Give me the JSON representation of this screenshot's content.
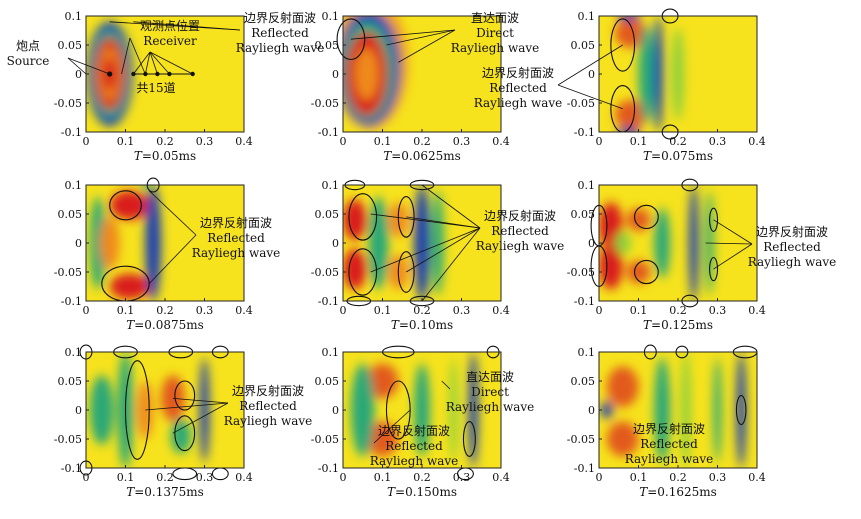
{
  "figure": {
    "x_ticks": [
      "0",
      "0.1",
      "0.2",
      "0.3",
      "0.4"
    ],
    "y_ticks": [
      "0.1",
      "0.05",
      "0",
      "-0.05",
      "-0.1"
    ],
    "time_var": "T",
    "panels": [
      {
        "time": "=0.05ms",
        "labels": [
          {
            "lines": [
              "观测点位置",
              "Receiver"
            ]
          },
          {
            "lines": [
              "炮点",
              "Source"
            ]
          },
          {
            "lines": [
              "共15道"
            ]
          },
          {
            "lines": [
              "边界反射面波",
              "Reflected",
              "Rayliegh wave"
            ]
          }
        ]
      },
      {
        "time": "=0.0625ms",
        "labels": [
          {
            "lines": [
              "直达面波",
              "Direct",
              "Rayliegh wave"
            ]
          }
        ]
      },
      {
        "time": "=0.075ms",
        "labels": [
          {
            "lines": [
              "边界反射面波",
              "Reflected",
              "Rayliegh wave"
            ]
          }
        ]
      },
      {
        "time": "=0.0875ms",
        "labels": [
          {
            "lines": [
              "边界反射面波",
              "Reflected",
              "Rayliegh wave"
            ]
          }
        ]
      },
      {
        "time": "=0.10ms",
        "labels": [
          {
            "lines": [
              "边界反射面波",
              "Reflected",
              "Rayliegh wave"
            ]
          }
        ]
      },
      {
        "time": "=0.125ms",
        "labels": [
          {
            "lines": [
              "边界反射面波",
              "Reflected",
              "Rayliegh wave"
            ]
          }
        ]
      },
      {
        "time": "=0.1375ms",
        "labels": [
          {
            "lines": [
              "边界反射面波",
              "Reflected",
              "Rayliegh wave"
            ]
          }
        ]
      },
      {
        "time": "=0.150ms",
        "labels": [
          {
            "lines": [
              "直达面波",
              "Direct",
              "Rayliegh wave"
            ]
          },
          {
            "lines": [
              "边界反射面波",
              "Reflected",
              "Rayliegh wave"
            ]
          }
        ]
      },
      {
        "time": "=0.1625ms",
        "labels": [
          {
            "lines": [
              "边界反射面波",
              "Reflected",
              "Rayliegh wave"
            ]
          }
        ]
      }
    ]
  },
  "chart_data": {
    "type": "heatmap",
    "grid": "3x3 snapshots of a surface-wave wavefield",
    "x_range": [
      0,
      0.4
    ],
    "y_range": [
      -0.1,
      0.1
    ],
    "source_position": [
      0.06,
      0
    ],
    "receivers": {
      "count": 15,
      "x_start": 0.12,
      "x_end": 0.27,
      "y": 0
    },
    "snapshots_ms": [
      0.05,
      0.0625,
      0.075,
      0.0875,
      0.1,
      0.125,
      0.1375,
      0.15,
      0.1625
    ],
    "colors": {
      "background": "#f6e21d",
      "positive": "#d91e1e",
      "negative": "#1f40b0",
      "transition": "#2aa877"
    }
  }
}
